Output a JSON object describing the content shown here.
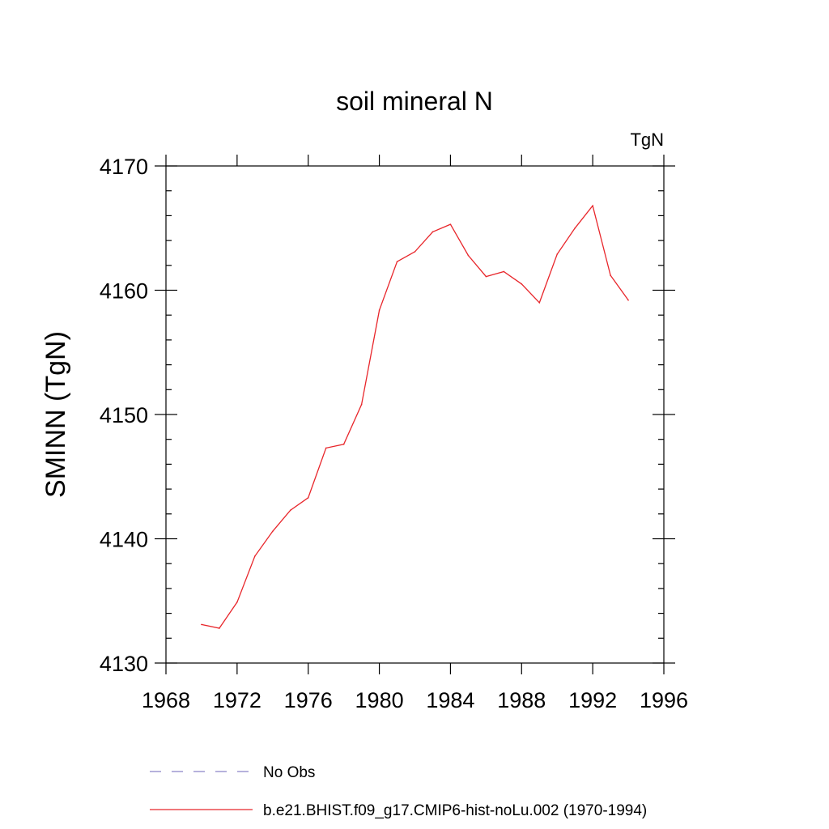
{
  "chart_data": {
    "type": "line",
    "title": "soil mineral N",
    "units": "TgN",
    "ylabel": "SMINN  (TgN)",
    "xlabel": "",
    "xlim": [
      1968,
      1996
    ],
    "ylim": [
      4130,
      4170
    ],
    "x_ticks": [
      1968,
      1972,
      1976,
      1980,
      1984,
      1988,
      1992,
      1996
    ],
    "y_ticks": [
      4130,
      4140,
      4150,
      4160,
      4170
    ],
    "grid": false,
    "legend_position": "bottom",
    "series": [
      {
        "name": "No Obs",
        "color": "#8a84c8",
        "style": "dashed",
        "x": [],
        "values": []
      },
      {
        "name": "b.e21.BHIST.f09_g17.CMIP6-hist-noLu.002 (1970-1994)",
        "color": "#e8262b",
        "style": "solid",
        "x": [
          1970,
          1971,
          1972,
          1973,
          1974,
          1975,
          1976,
          1977,
          1978,
          1979,
          1980,
          1981,
          1982,
          1983,
          1984,
          1985,
          1986,
          1987,
          1988,
          1989,
          1990,
          1991,
          1992,
          1993,
          1994
        ],
        "values": [
          4133.1,
          4132.8,
          4134.9,
          4138.6,
          4140.6,
          4142.3,
          4143.3,
          4147.3,
          4147.6,
          4150.8,
          4158.4,
          4162.3,
          4163.1,
          4164.7,
          4165.3,
          4162.8,
          4161.1,
          4161.5,
          4160.5,
          4159.0,
          4162.9,
          4165.0,
          4166.8,
          4161.2,
          4159.2
        ]
      }
    ]
  }
}
